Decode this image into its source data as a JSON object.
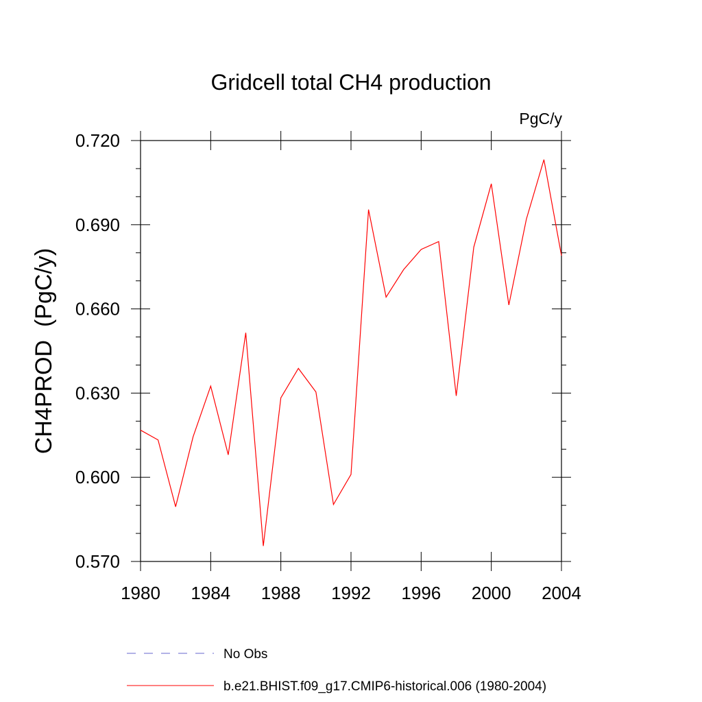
{
  "chart_data": {
    "type": "line",
    "title": "Gridcell total CH4 production",
    "units": "PgC/y",
    "xlabel": "",
    "ylabel": "CH4PROD  (PgC/y)",
    "xlim": [
      1980,
      2004
    ],
    "ylim": [
      0.57,
      0.72
    ],
    "xticks": [
      1980,
      1984,
      1988,
      1992,
      1996,
      2000,
      2004
    ],
    "xtick_labels": [
      "1980",
      "1984",
      "1988",
      "1992",
      "1996",
      "2000",
      "2004"
    ],
    "yticks": [
      0.57,
      0.6,
      0.63,
      0.66,
      0.69,
      0.72
    ],
    "ytick_labels": [
      "0.570",
      "0.600",
      "0.630",
      "0.660",
      "0.690",
      "0.720"
    ],
    "grid": false,
    "legend_position": "bottom",
    "series": [
      {
        "name": "b.e21.BHIST.f09_g17.CMIP6-historical.006 (1980-2004)",
        "color": "#ff0000",
        "style": "solid",
        "x": [
          1980,
          1981,
          1982,
          1983,
          1984,
          1985,
          1986,
          1987,
          1988,
          1989,
          1990,
          1991,
          1992,
          1993,
          1994,
          1995,
          1996,
          1997,
          1998,
          1999,
          2000,
          2001,
          2002,
          2003,
          2004
        ],
        "y": [
          0.6168,
          0.6133,
          0.5895,
          0.6145,
          0.6325,
          0.608,
          0.6515,
          0.5755,
          0.6283,
          0.6388,
          0.6304,
          0.5903,
          0.601,
          0.6954,
          0.6642,
          0.674,
          0.6812,
          0.684,
          0.629,
          0.682,
          0.7046,
          0.6614,
          0.692,
          0.7132,
          0.679
        ]
      }
    ],
    "legend": [
      {
        "label": "No Obs",
        "color": "#6666cc",
        "style": "dashed"
      },
      {
        "label": "b.e21.BHIST.f09_g17.CMIP6-historical.006 (1980-2004)",
        "color": "#ff0000",
        "style": "solid"
      }
    ]
  }
}
